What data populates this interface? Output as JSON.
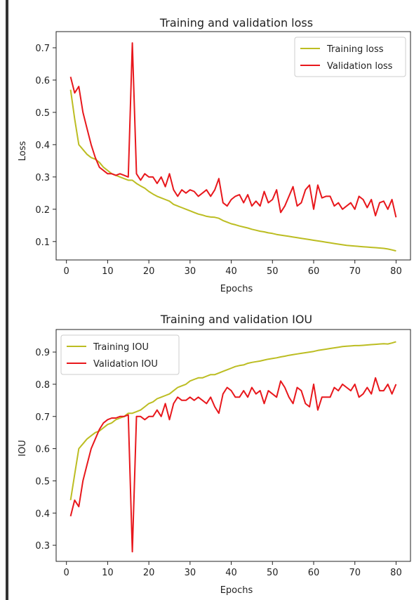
{
  "chart_data": [
    {
      "type": "line",
      "title": "Training and validation loss",
      "xlabel": "Epochs",
      "ylabel": "Loss",
      "xlim": [
        -2.5,
        83.5
      ],
      "ylim": [
        0.043,
        0.75
      ],
      "xticks": [
        0,
        10,
        20,
        30,
        40,
        50,
        60,
        70,
        80
      ],
      "yticks": [
        0.1,
        0.2,
        0.3,
        0.4,
        0.5,
        0.6,
        0.7
      ],
      "xtick_labels": [
        "0",
        "10",
        "20",
        "30",
        "40",
        "50",
        "60",
        "70",
        "80"
      ],
      "ytick_labels": [
        "0.1",
        "0.2",
        "0.3",
        "0.4",
        "0.5",
        "0.6",
        "0.7"
      ],
      "legend_position": "top-right",
      "x": [
        1,
        2,
        3,
        4,
        5,
        6,
        7,
        8,
        9,
        10,
        11,
        12,
        13,
        14,
        15,
        16,
        17,
        18,
        19,
        20,
        21,
        22,
        23,
        24,
        25,
        26,
        27,
        28,
        29,
        30,
        31,
        32,
        33,
        34,
        35,
        36,
        37,
        38,
        39,
        40,
        41,
        42,
        43,
        44,
        45,
        46,
        47,
        48,
        49,
        50,
        51,
        52,
        53,
        54,
        55,
        56,
        57,
        58,
        59,
        60,
        61,
        62,
        63,
        64,
        65,
        66,
        67,
        68,
        69,
        70,
        71,
        72,
        73,
        74,
        75,
        76,
        77,
        78,
        79,
        80
      ],
      "series": [
        {
          "name": "Training loss",
          "color": "#bcbd22",
          "values": [
            0.57,
            0.48,
            0.4,
            0.385,
            0.37,
            0.36,
            0.355,
            0.345,
            0.33,
            0.32,
            0.31,
            0.305,
            0.3,
            0.295,
            0.29,
            0.29,
            0.28,
            0.272,
            0.265,
            0.255,
            0.247,
            0.24,
            0.235,
            0.23,
            0.225,
            0.215,
            0.21,
            0.205,
            0.2,
            0.195,
            0.19,
            0.185,
            0.182,
            0.178,
            0.176,
            0.175,
            0.172,
            0.165,
            0.16,
            0.155,
            0.152,
            0.148,
            0.145,
            0.142,
            0.138,
            0.135,
            0.132,
            0.13,
            0.127,
            0.125,
            0.122,
            0.12,
            0.118,
            0.116,
            0.114,
            0.112,
            0.11,
            0.108,
            0.106,
            0.104,
            0.102,
            0.1,
            0.098,
            0.096,
            0.094,
            0.092,
            0.09,
            0.088,
            0.087,
            0.086,
            0.085,
            0.084,
            0.083,
            0.082,
            0.081,
            0.08,
            0.079,
            0.077,
            0.074,
            0.071
          ]
        },
        {
          "name": "Validation loss",
          "color": "#e8171c",
          "values": [
            0.61,
            0.56,
            0.58,
            0.5,
            0.45,
            0.4,
            0.36,
            0.33,
            0.32,
            0.31,
            0.31,
            0.305,
            0.31,
            0.305,
            0.3,
            0.715,
            0.31,
            0.29,
            0.31,
            0.3,
            0.3,
            0.28,
            0.3,
            0.27,
            0.31,
            0.26,
            0.24,
            0.26,
            0.25,
            0.26,
            0.255,
            0.24,
            0.25,
            0.26,
            0.24,
            0.26,
            0.295,
            0.22,
            0.21,
            0.23,
            0.24,
            0.245,
            0.22,
            0.245,
            0.21,
            0.225,
            0.21,
            0.255,
            0.22,
            0.23,
            0.26,
            0.19,
            0.21,
            0.24,
            0.27,
            0.21,
            0.22,
            0.26,
            0.275,
            0.2,
            0.275,
            0.235,
            0.24,
            0.24,
            0.21,
            0.22,
            0.2,
            0.21,
            0.22,
            0.2,
            0.24,
            0.23,
            0.205,
            0.23,
            0.18,
            0.22,
            0.225,
            0.2,
            0.23,
            0.175
          ]
        }
      ]
    },
    {
      "type": "line",
      "title": "Training and validation IOU",
      "xlabel": "Epochs",
      "ylabel": "IOU",
      "xlim": [
        -2.5,
        83.5
      ],
      "ylim": [
        0.25,
        0.97
      ],
      "xticks": [
        0,
        10,
        20,
        30,
        40,
        50,
        60,
        70,
        80
      ],
      "yticks": [
        0.3,
        0.4,
        0.5,
        0.6,
        0.7,
        0.8,
        0.9
      ],
      "xtick_labels": [
        "0",
        "10",
        "20",
        "30",
        "40",
        "50",
        "60",
        "70",
        "80"
      ],
      "ytick_labels": [
        "0.3",
        "0.4",
        "0.5",
        "0.6",
        "0.7",
        "0.8",
        "0.9"
      ],
      "legend_position": "top-left",
      "x": [
        1,
        2,
        3,
        4,
        5,
        6,
        7,
        8,
        9,
        10,
        11,
        12,
        13,
        14,
        15,
        16,
        17,
        18,
        19,
        20,
        21,
        22,
        23,
        24,
        25,
        26,
        27,
        28,
        29,
        30,
        31,
        32,
        33,
        34,
        35,
        36,
        37,
        38,
        39,
        40,
        41,
        42,
        43,
        44,
        45,
        46,
        47,
        48,
        49,
        50,
        51,
        52,
        53,
        54,
        55,
        56,
        57,
        58,
        59,
        60,
        61,
        62,
        63,
        64,
        65,
        66,
        67,
        68,
        69,
        70,
        71,
        72,
        73,
        74,
        75,
        76,
        77,
        78,
        79,
        80
      ],
      "series": [
        {
          "name": "Training IOU",
          "color": "#bcbd22",
          "values": [
            0.44,
            0.52,
            0.6,
            0.615,
            0.63,
            0.64,
            0.65,
            0.655,
            0.665,
            0.675,
            0.68,
            0.69,
            0.695,
            0.7,
            0.71,
            0.71,
            0.715,
            0.72,
            0.73,
            0.74,
            0.745,
            0.755,
            0.76,
            0.765,
            0.77,
            0.78,
            0.79,
            0.795,
            0.8,
            0.81,
            0.815,
            0.82,
            0.82,
            0.825,
            0.83,
            0.83,
            0.835,
            0.84,
            0.845,
            0.85,
            0.855,
            0.858,
            0.86,
            0.865,
            0.868,
            0.87,
            0.872,
            0.875,
            0.878,
            0.88,
            0.882,
            0.885,
            0.887,
            0.89,
            0.892,
            0.894,
            0.896,
            0.898,
            0.9,
            0.902,
            0.905,
            0.907,
            0.909,
            0.911,
            0.913,
            0.915,
            0.917,
            0.918,
            0.919,
            0.92,
            0.92,
            0.921,
            0.922,
            0.923,
            0.924,
            0.925,
            0.926,
            0.925,
            0.928,
            0.932
          ]
        },
        {
          "name": "Validation IOU",
          "color": "#e8171c",
          "values": [
            0.39,
            0.44,
            0.42,
            0.5,
            0.55,
            0.6,
            0.63,
            0.66,
            0.68,
            0.69,
            0.695,
            0.695,
            0.7,
            0.7,
            0.705,
            0.28,
            0.7,
            0.7,
            0.69,
            0.7,
            0.7,
            0.72,
            0.7,
            0.74,
            0.69,
            0.74,
            0.76,
            0.75,
            0.75,
            0.76,
            0.75,
            0.76,
            0.75,
            0.74,
            0.76,
            0.73,
            0.71,
            0.77,
            0.79,
            0.78,
            0.76,
            0.76,
            0.78,
            0.76,
            0.79,
            0.77,
            0.78,
            0.74,
            0.78,
            0.77,
            0.76,
            0.81,
            0.79,
            0.76,
            0.74,
            0.79,
            0.78,
            0.74,
            0.73,
            0.8,
            0.72,
            0.76,
            0.76,
            0.76,
            0.79,
            0.78,
            0.8,
            0.79,
            0.78,
            0.8,
            0.76,
            0.77,
            0.79,
            0.77,
            0.82,
            0.78,
            0.78,
            0.8,
            0.77,
            0.8
          ]
        }
      ]
    }
  ]
}
